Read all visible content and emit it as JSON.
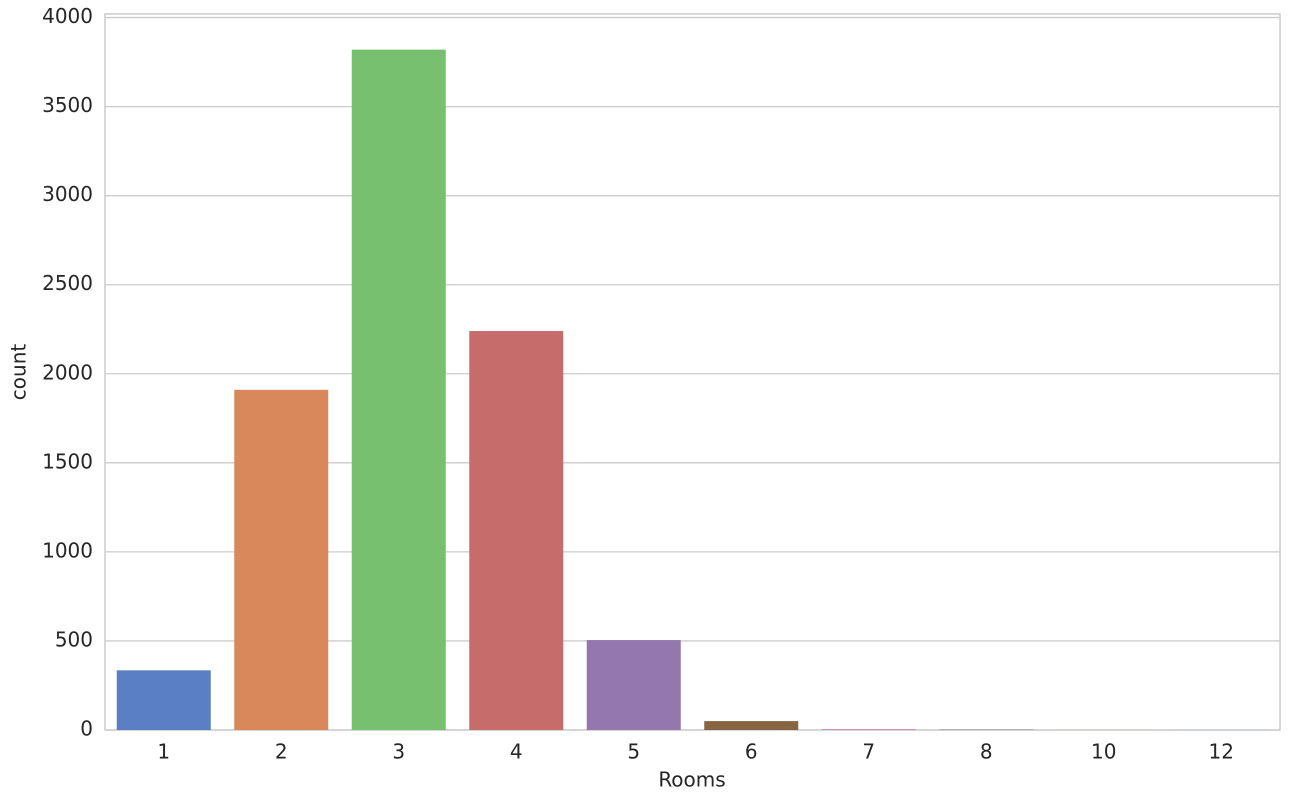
{
  "chart_data": {
    "type": "bar",
    "xlabel": "Rooms",
    "ylabel": "count",
    "categories": [
      "1",
      "2",
      "3",
      "4",
      "5",
      "6",
      "7",
      "8",
      "10",
      "12"
    ],
    "values": [
      335,
      1910,
      3820,
      2240,
      505,
      50,
      5,
      3,
      1,
      1
    ],
    "colors": [
      "#5a7fc2",
      "#d9885c",
      "#77c06f",
      "#c66d6b",
      "#9377ad",
      "#876543",
      "#d18cbc",
      "#8a8a8a",
      "#c9b677",
      "#8fc3db"
    ],
    "ylim": [
      0,
      4020
    ],
    "yticks": [
      0,
      500,
      1000,
      1500,
      2000,
      2500,
      3000,
      3500,
      4000
    ],
    "grid": true
  }
}
